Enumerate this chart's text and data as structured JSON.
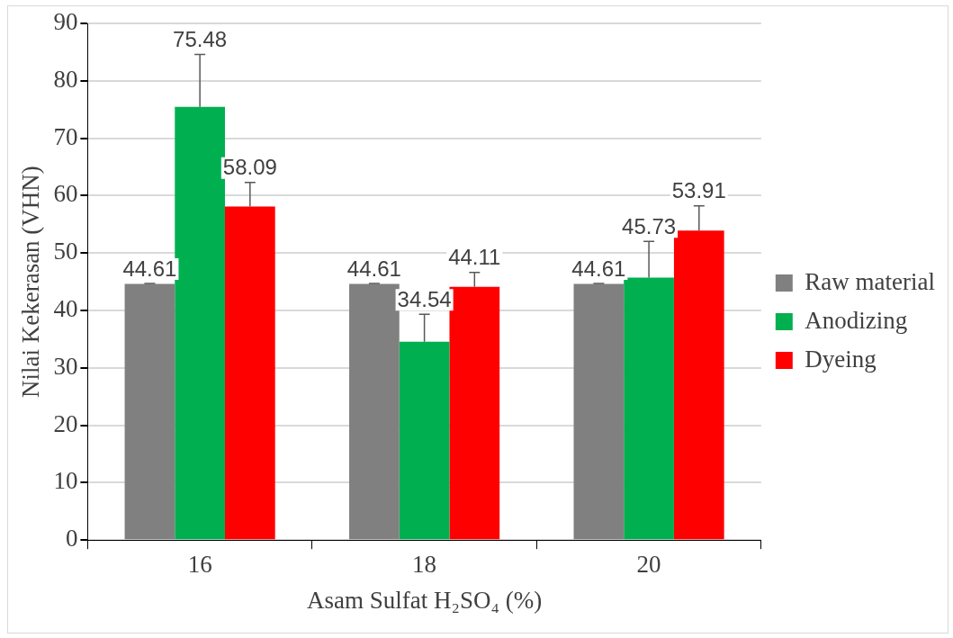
{
  "chart_data": {
    "type": "bar",
    "xlabel": "Asam Sulfat H₂SO₄ (%)",
    "ylabel": "Nilai Kekerasan (VHN)",
    "categories": [
      "16",
      "18",
      "20"
    ],
    "series": [
      {
        "name": "Raw material",
        "color": "#808080",
        "values": [
          44.61,
          44.61,
          44.61
        ],
        "errors": [
          0.1,
          0.1,
          0.1
        ]
      },
      {
        "name": "Anodizing",
        "color": "#00b050",
        "values": [
          75.48,
          34.54,
          45.73
        ],
        "errors": [
          9.1,
          4.8,
          6.3
        ]
      },
      {
        "name": "Dyeing",
        "color": "#ff0000",
        "values": [
          58.09,
          44.11,
          53.91
        ],
        "errors": [
          4.2,
          2.5,
          4.3
        ]
      }
    ],
    "ylim": [
      0,
      90
    ],
    "yticks": [
      0,
      10,
      20,
      30,
      40,
      50,
      60,
      70,
      80,
      90
    ],
    "grid": "y",
    "legend": "right",
    "data_labels": true
  }
}
